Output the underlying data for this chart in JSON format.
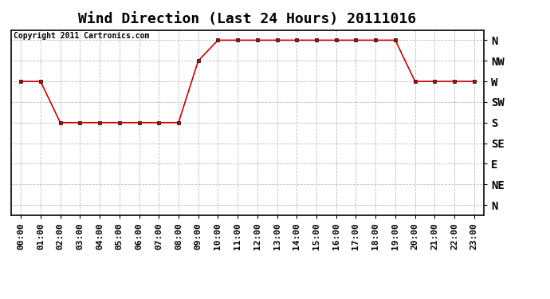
{
  "title": "Wind Direction (Last 24 Hours) 20111016",
  "copyright_text": "Copyright 2011 Cartronics.com",
  "x_labels": [
    "00:00",
    "01:00",
    "02:00",
    "03:00",
    "04:00",
    "05:00",
    "06:00",
    "07:00",
    "08:00",
    "09:00",
    "10:00",
    "11:00",
    "12:00",
    "13:00",
    "14:00",
    "15:00",
    "16:00",
    "17:00",
    "18:00",
    "19:00",
    "20:00",
    "21:00",
    "22:00",
    "23:00"
  ],
  "y_labels": [
    "N",
    "NW",
    "W",
    "SW",
    "S",
    "SE",
    "E",
    "NE",
    "N"
  ],
  "y_tick_vals": [
    8,
    7,
    6,
    5,
    4,
    3,
    2,
    1,
    0
  ],
  "wind_data": [
    6,
    6,
    4,
    4,
    4,
    4,
    4,
    4,
    4,
    7,
    8,
    8,
    8,
    8,
    8,
    8,
    8,
    8,
    8,
    8,
    6,
    6,
    6,
    6
  ],
  "line_color": "#cc0000",
  "background_color": "#ffffff",
  "grid_color": "#bbbbbb",
  "title_fontsize": 13,
  "tick_fontsize": 8,
  "copyright_fontsize": 7
}
